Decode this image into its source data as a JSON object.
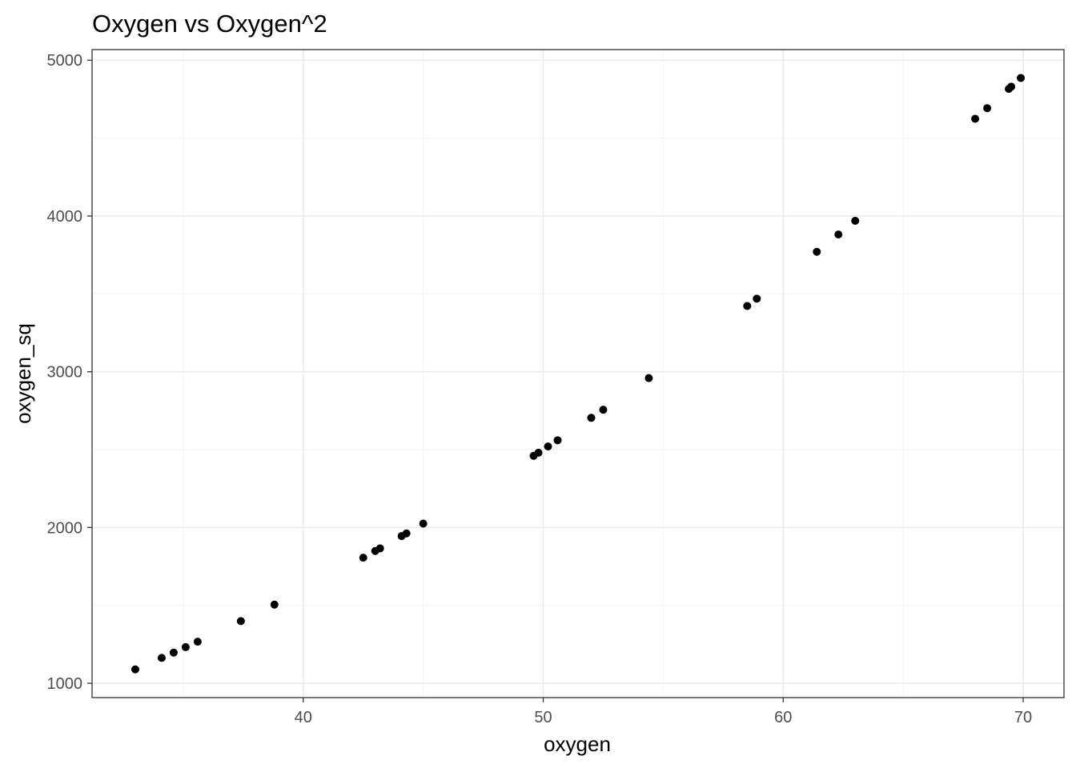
{
  "chart_data": {
    "type": "scatter",
    "title": "Oxygen vs Oxygen^2",
    "xlabel": "oxygen",
    "ylabel": "oxygen_sq",
    "xlim": [
      31.2,
      71.7
    ],
    "ylim": [
      908,
      5068
    ],
    "x_ticks": [
      40,
      50,
      60,
      70
    ],
    "x_tick_labels": [
      "40",
      "50",
      "60",
      "70"
    ],
    "y_ticks": [
      1000,
      2000,
      3000,
      4000,
      5000
    ],
    "y_tick_labels": [
      "1000",
      "2000",
      "3000",
      "4000",
      "5000"
    ],
    "grid": true,
    "legend": "none",
    "colors": {
      "points": "#000000",
      "panel_border": "#333333",
      "grid_major": "#ebebeb",
      "grid_minor": "#f5f5f5",
      "tick_label": "#4d4d4d"
    },
    "series": [
      {
        "x": [
          33.0,
          34.1,
          34.6,
          35.1,
          35.6,
          37.4,
          38.8,
          42.5,
          43.0,
          43.2,
          44.1,
          44.3,
          45.0,
          49.6,
          49.8,
          50.2,
          50.6,
          52.0,
          52.5,
          54.4,
          58.5,
          58.9,
          61.4,
          62.3,
          63.0,
          68.0,
          68.5,
          69.4,
          69.5,
          69.9
        ],
        "y": [
          1089,
          1163,
          1197,
          1232,
          1267,
          1399,
          1505,
          1806,
          1849,
          1866,
          1945,
          1962,
          2025,
          2460,
          2480,
          2520,
          2560,
          2704,
          2756,
          2959,
          3422,
          3469,
          3770,
          3881,
          3969,
          4624,
          4692,
          4816,
          4830,
          4886
        ]
      }
    ]
  }
}
